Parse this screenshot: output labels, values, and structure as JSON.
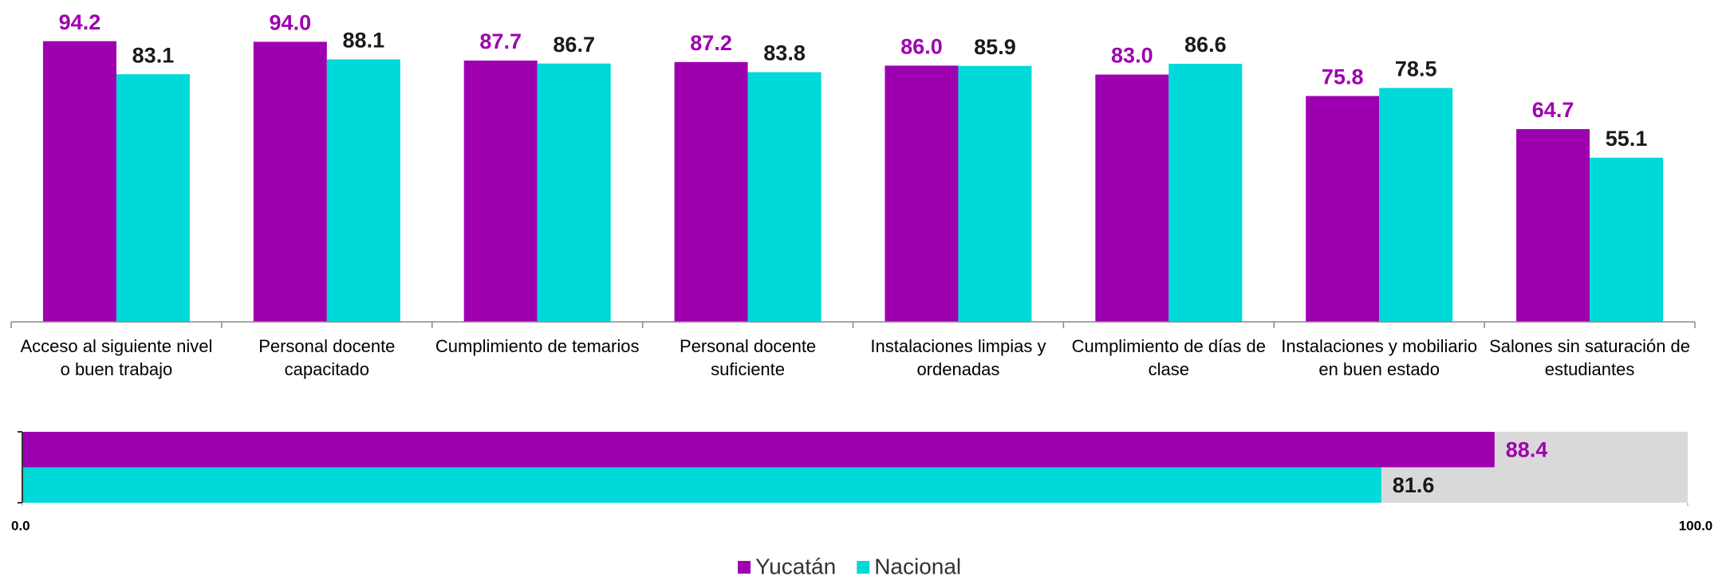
{
  "chart_data": [
    {
      "type": "bar",
      "categories": [
        "Acceso al siguiente nivel o buen trabajo",
        "Personal docente capacitado",
        "Cumplimiento de temarios",
        "Personal docente suficiente",
        "Instalaciones limpias y ordenadas",
        "Cumplimiento de días de clase",
        "Instalaciones y mobiliario en buen estado",
        "Salones sin saturación de estudiantes"
      ],
      "series": [
        {
          "name": "Yucatán",
          "color": "#9e00b0",
          "label_color": "#9e00b0",
          "values": [
            94.2,
            94,
            87.7,
            87.2,
            86,
            83,
            75.8,
            64.7
          ],
          "value_labels": [
            "94.2",
            "94.0",
            "87.7",
            "87.2",
            "86.0",
            "83.0",
            "75.8",
            "64.7"
          ]
        },
        {
          "name": "Nacional",
          "color": "#00d9d9",
          "label_color": "#1a1a1a",
          "values": [
            83.1,
            88.1,
            86.7,
            83.8,
            85.9,
            86.6,
            78.5,
            55.1
          ],
          "value_labels": [
            "83.1",
            "88.1",
            "86.7",
            "83.8",
            "85.9",
            "86.6",
            "78.5",
            "55.1"
          ]
        }
      ],
      "ylim": [
        0,
        100
      ],
      "legend": "bottom"
    },
    {
      "type": "barh",
      "series": [
        {
          "color": "#9e00b0",
          "label_color": "#9e00b0",
          "values": [
            88.4
          ],
          "value_labels": [
            "88.4"
          ]
        },
        {
          "color": "#00d9d9",
          "label_color": "#1a1a1a",
          "values": [
            81.6
          ],
          "value_labels": [
            "81.6"
          ]
        }
      ],
      "xlim": [
        0,
        100
      ],
      "xticks": [
        {
          "value": 0,
          "label": "0.0"
        },
        {
          "value": 100,
          "label": "100.0"
        }
      ],
      "background": "#d9d9d9"
    }
  ]
}
